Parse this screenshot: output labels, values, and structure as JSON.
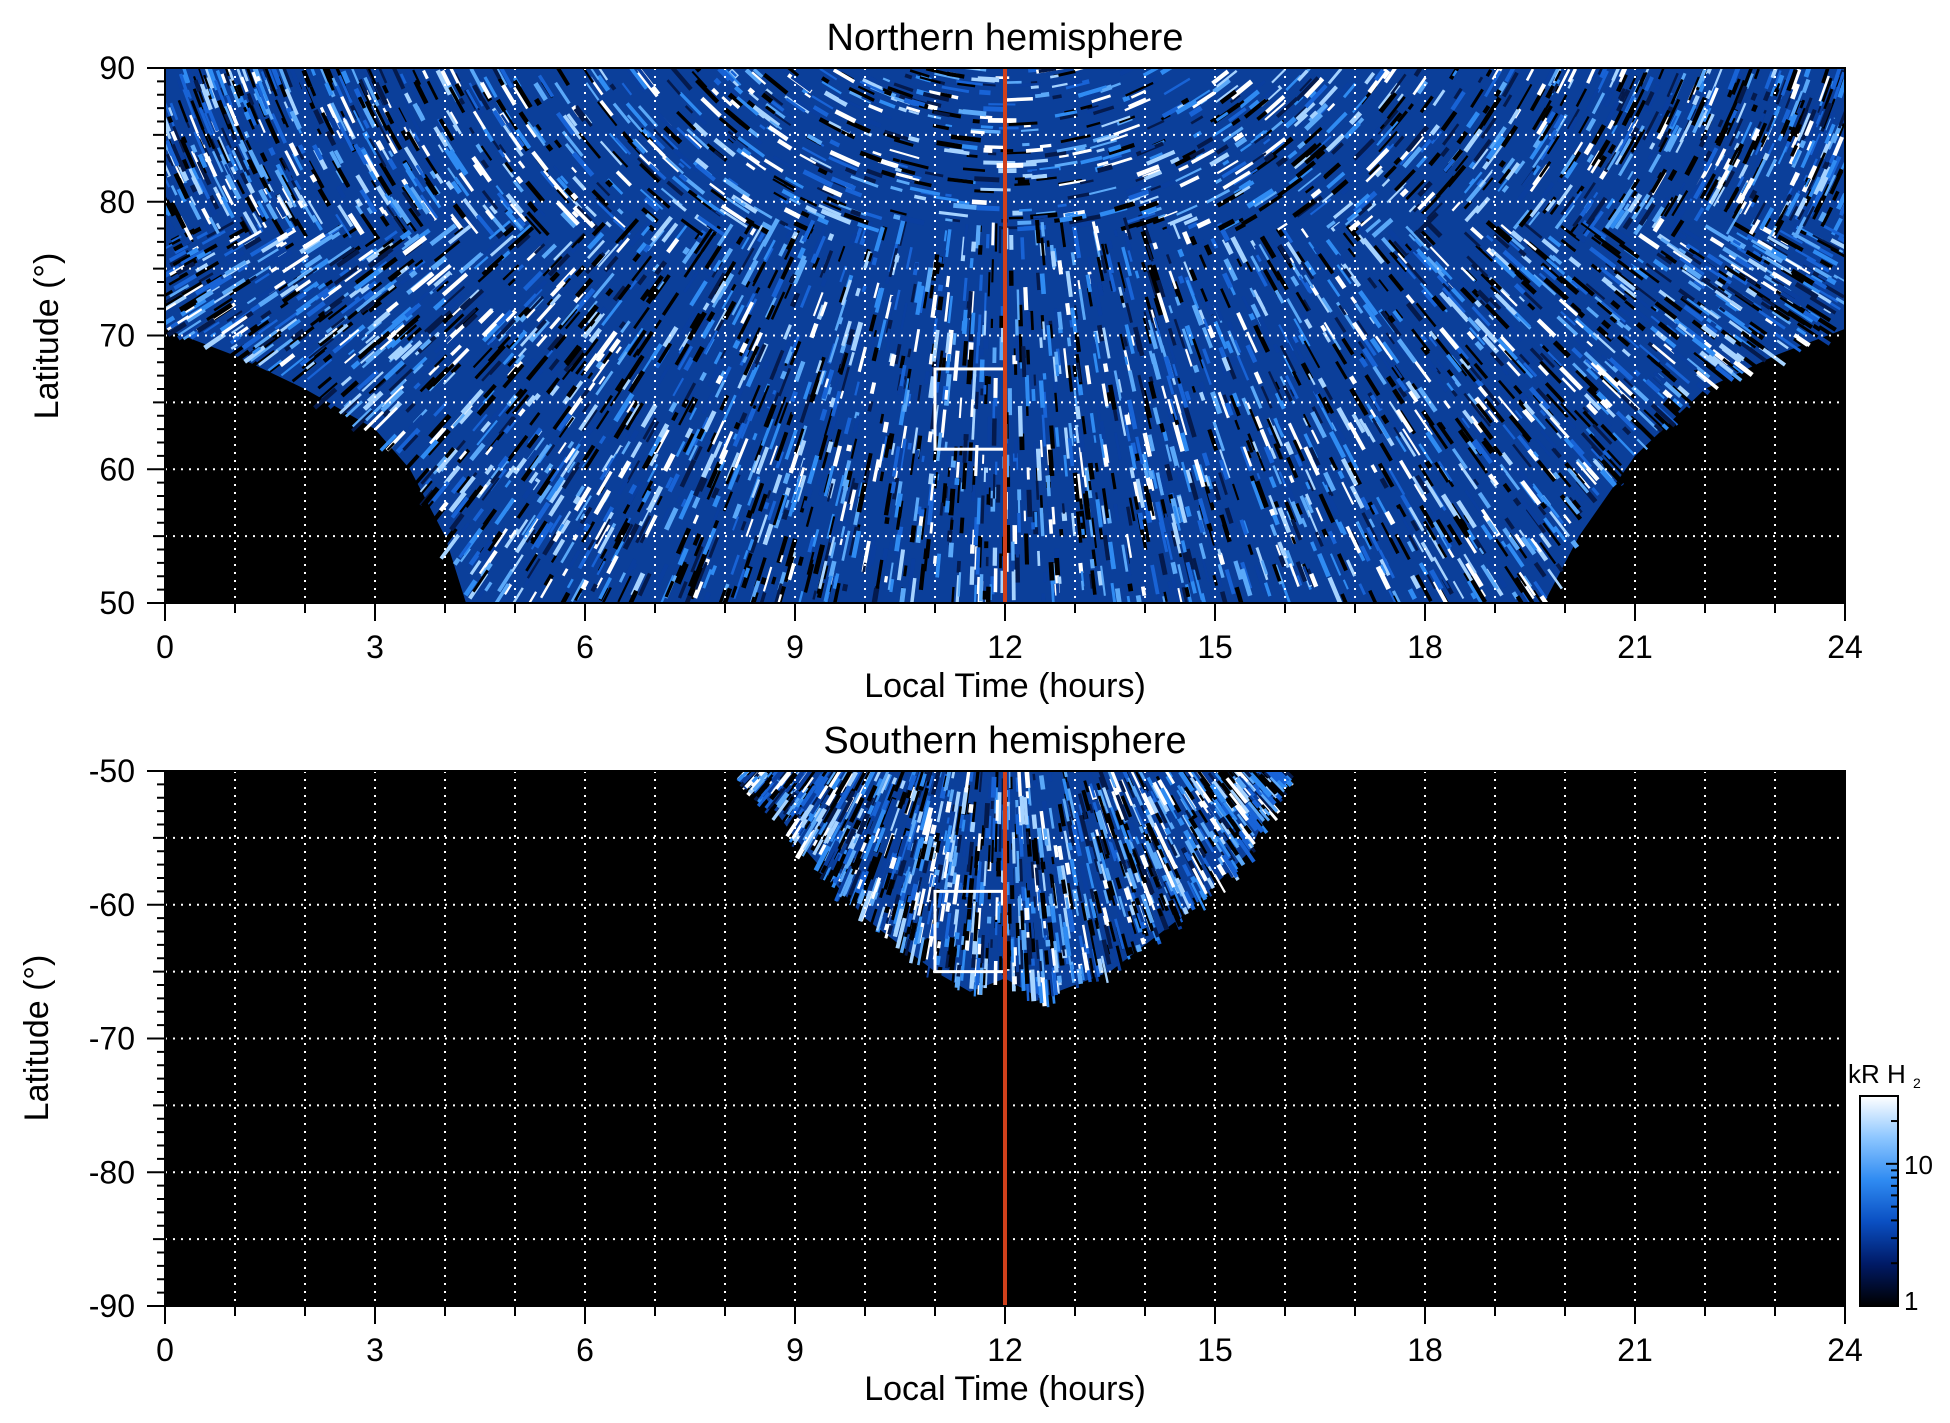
{
  "chart_data": [
    {
      "type": "heatmap",
      "title": "Northern hemisphere",
      "xlabel": "Local Time (hours)",
      "ylabel": "Latitude (°)",
      "xlim": [
        0,
        24
      ],
      "ylim": [
        50,
        90
      ],
      "xticks": [
        "0",
        "3",
        "6",
        "9",
        "12",
        "15",
        "18",
        "21",
        "24"
      ],
      "yticks": [
        "50",
        "60",
        "70",
        "80",
        "90"
      ],
      "grid": true,
      "marker_line_x": 12,
      "marker_line_color": "#d0401b",
      "box": {
        "x": [
          11,
          12
        ],
        "y": [
          61.5,
          67.5
        ]
      },
      "coverage_edge": [
        [
          0,
          70.5
        ],
        [
          1,
          68.5
        ],
        [
          2,
          66
        ],
        [
          3,
          63
        ],
        [
          3.5,
          60
        ],
        [
          4,
          55
        ],
        [
          4.3,
          50
        ],
        [
          19.7,
          50
        ],
        [
          20.2,
          55
        ],
        [
          21,
          61
        ],
        [
          22,
          66
        ],
        [
          23,
          68.5
        ],
        [
          24,
          70.5
        ]
      ]
    },
    {
      "type": "heatmap",
      "title": "Southern hemisphere",
      "xlabel": "Local Time (hours)",
      "ylabel": "Latitude (°)",
      "xlim": [
        0,
        24
      ],
      "ylim": [
        -90,
        -50
      ],
      "xticks": [
        "0",
        "3",
        "6",
        "9",
        "12",
        "15",
        "18",
        "21",
        "24"
      ],
      "yticks": [
        "-50",
        "-60",
        "-70",
        "-80",
        "-90"
      ],
      "grid": true,
      "marker_line_x": 12,
      "marker_line_color": "#d0401b",
      "box": {
        "x": [
          11,
          12
        ],
        "y": [
          -65,
          -59
        ]
      },
      "coverage_edge": [
        [
          8.3,
          -50
        ],
        [
          9,
          -55
        ],
        [
          10,
          -61
        ],
        [
          11,
          -65
        ],
        [
          11.5,
          -66.5
        ],
        [
          12,
          -65.5
        ],
        [
          12.5,
          -67
        ],
        [
          13.5,
          -65
        ],
        [
          14.5,
          -61
        ],
        [
          15.5,
          -56
        ],
        [
          16,
          -50
        ]
      ]
    }
  ],
  "colorbar": {
    "label_main": "kR H",
    "label_sub": "2",
    "scale": "log",
    "range": [
      1,
      30
    ],
    "ticks": [
      "1",
      "10"
    ],
    "colors": [
      "#000000",
      "#001a66",
      "#0a4fc2",
      "#2f8bf2",
      "#8cc6ff",
      "#ffffff"
    ]
  }
}
